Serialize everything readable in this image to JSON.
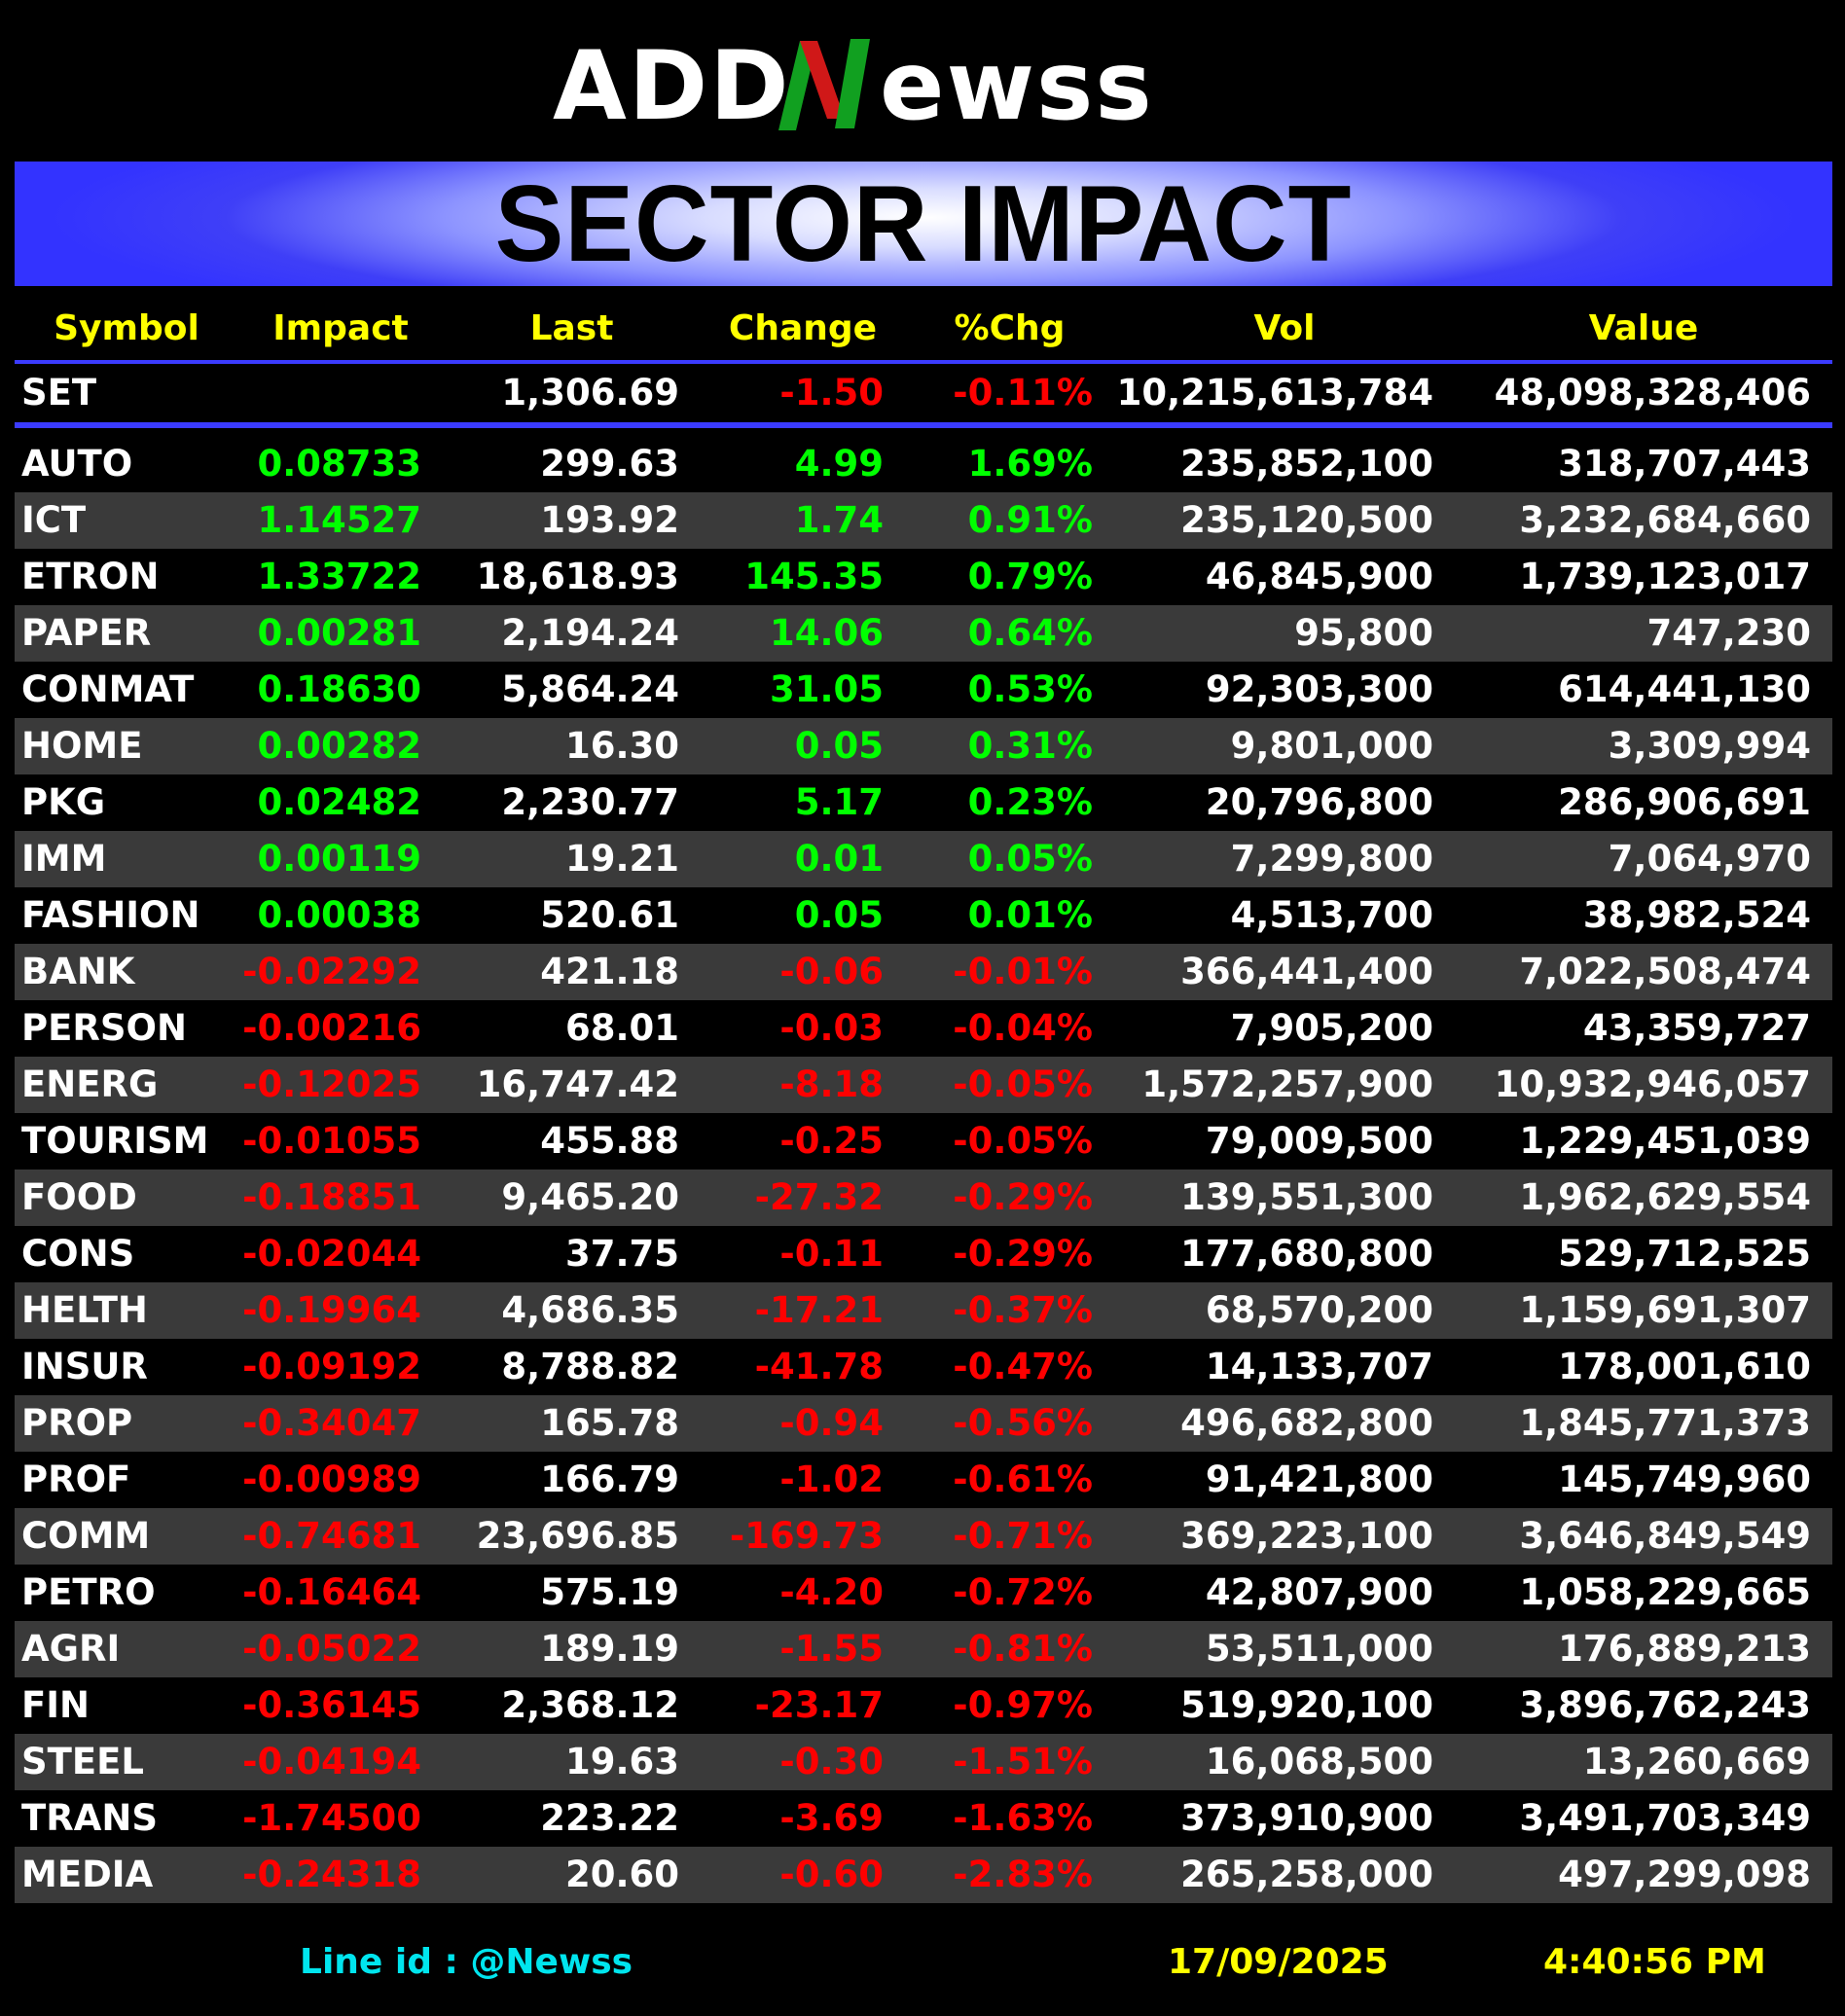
{
  "header": {
    "logo_text": "ADDNewss",
    "title": "SECTOR IMPACT"
  },
  "colors": {
    "positive": "#00ff00",
    "negative": "#ff0000",
    "header_text": "#ffff00",
    "banner": "#3333ff",
    "footer_line": "#00e5ee"
  },
  "table": {
    "columns": [
      "Symbol",
      "Impact",
      "Last",
      "Change",
      "%Chg",
      "Vol",
      "Value"
    ],
    "index": {
      "symbol": "SET",
      "impact": "",
      "last": "1,306.69",
      "change": "-1.50",
      "pct": "-0.11%",
      "vol": "10,215,613,784",
      "value": "48,098,328,406",
      "dir": "neg"
    },
    "rows": [
      {
        "symbol": "AUTO",
        "impact": "0.08733",
        "last": "299.63",
        "change": "4.99",
        "pct": "1.69%",
        "vol": "235,852,100",
        "value": "318,707,443",
        "dir": "pos"
      },
      {
        "symbol": "ICT",
        "impact": "1.14527",
        "last": "193.92",
        "change": "1.74",
        "pct": "0.91%",
        "vol": "235,120,500",
        "value": "3,232,684,660",
        "dir": "pos"
      },
      {
        "symbol": "ETRON",
        "impact": "1.33722",
        "last": "18,618.93",
        "change": "145.35",
        "pct": "0.79%",
        "vol": "46,845,900",
        "value": "1,739,123,017",
        "dir": "pos"
      },
      {
        "symbol": "PAPER",
        "impact": "0.00281",
        "last": "2,194.24",
        "change": "14.06",
        "pct": "0.64%",
        "vol": "95,800",
        "value": "747,230",
        "dir": "pos"
      },
      {
        "symbol": "CONMAT",
        "impact": "0.18630",
        "last": "5,864.24",
        "change": "31.05",
        "pct": "0.53%",
        "vol": "92,303,300",
        "value": "614,441,130",
        "dir": "pos"
      },
      {
        "symbol": "HOME",
        "impact": "0.00282",
        "last": "16.30",
        "change": "0.05",
        "pct": "0.31%",
        "vol": "9,801,000",
        "value": "3,309,994",
        "dir": "pos"
      },
      {
        "symbol": "PKG",
        "impact": "0.02482",
        "last": "2,230.77",
        "change": "5.17",
        "pct": "0.23%",
        "vol": "20,796,800",
        "value": "286,906,691",
        "dir": "pos"
      },
      {
        "symbol": "IMM",
        "impact": "0.00119",
        "last": "19.21",
        "change": "0.01",
        "pct": "0.05%",
        "vol": "7,299,800",
        "value": "7,064,970",
        "dir": "pos"
      },
      {
        "symbol": "FASHION",
        "impact": "0.00038",
        "last": "520.61",
        "change": "0.05",
        "pct": "0.01%",
        "vol": "4,513,700",
        "value": "38,982,524",
        "dir": "pos"
      },
      {
        "symbol": "BANK",
        "impact": "-0.02292",
        "last": "421.18",
        "change": "-0.06",
        "pct": "-0.01%",
        "vol": "366,441,400",
        "value": "7,022,508,474",
        "dir": "neg"
      },
      {
        "symbol": "PERSON",
        "impact": "-0.00216",
        "last": "68.01",
        "change": "-0.03",
        "pct": "-0.04%",
        "vol": "7,905,200",
        "value": "43,359,727",
        "dir": "neg"
      },
      {
        "symbol": "ENERG",
        "impact": "-0.12025",
        "last": "16,747.42",
        "change": "-8.18",
        "pct": "-0.05%",
        "vol": "1,572,257,900",
        "value": "10,932,946,057",
        "dir": "neg"
      },
      {
        "symbol": "TOURISM",
        "impact": "-0.01055",
        "last": "455.88",
        "change": "-0.25",
        "pct": "-0.05%",
        "vol": "79,009,500",
        "value": "1,229,451,039",
        "dir": "neg"
      },
      {
        "symbol": "FOOD",
        "impact": "-0.18851",
        "last": "9,465.20",
        "change": "-27.32",
        "pct": "-0.29%",
        "vol": "139,551,300",
        "value": "1,962,629,554",
        "dir": "neg"
      },
      {
        "symbol": "CONS",
        "impact": "-0.02044",
        "last": "37.75",
        "change": "-0.11",
        "pct": "-0.29%",
        "vol": "177,680,800",
        "value": "529,712,525",
        "dir": "neg"
      },
      {
        "symbol": "HELTH",
        "impact": "-0.19964",
        "last": "4,686.35",
        "change": "-17.21",
        "pct": "-0.37%",
        "vol": "68,570,200",
        "value": "1,159,691,307",
        "dir": "neg"
      },
      {
        "symbol": "INSUR",
        "impact": "-0.09192",
        "last": "8,788.82",
        "change": "-41.78",
        "pct": "-0.47%",
        "vol": "14,133,707",
        "value": "178,001,610",
        "dir": "neg"
      },
      {
        "symbol": "PROP",
        "impact": "-0.34047",
        "last": "165.78",
        "change": "-0.94",
        "pct": "-0.56%",
        "vol": "496,682,800",
        "value": "1,845,771,373",
        "dir": "neg"
      },
      {
        "symbol": "PROF",
        "impact": "-0.00989",
        "last": "166.79",
        "change": "-1.02",
        "pct": "-0.61%",
        "vol": "91,421,800",
        "value": "145,749,960",
        "dir": "neg"
      },
      {
        "symbol": "COMM",
        "impact": "-0.74681",
        "last": "23,696.85",
        "change": "-169.73",
        "pct": "-0.71%",
        "vol": "369,223,100",
        "value": "3,646,849,549",
        "dir": "neg"
      },
      {
        "symbol": "PETRO",
        "impact": "-0.16464",
        "last": "575.19",
        "change": "-4.20",
        "pct": "-0.72%",
        "vol": "42,807,900",
        "value": "1,058,229,665",
        "dir": "neg"
      },
      {
        "symbol": "AGRI",
        "impact": "-0.05022",
        "last": "189.19",
        "change": "-1.55",
        "pct": "-0.81%",
        "vol": "53,511,000",
        "value": "176,889,213",
        "dir": "neg"
      },
      {
        "symbol": "FIN",
        "impact": "-0.36145",
        "last": "2,368.12",
        "change": "-23.17",
        "pct": "-0.97%",
        "vol": "519,920,100",
        "value": "3,896,762,243",
        "dir": "neg"
      },
      {
        "symbol": "STEEL",
        "impact": "-0.04194",
        "last": "19.63",
        "change": "-0.30",
        "pct": "-1.51%",
        "vol": "16,068,500",
        "value": "13,260,669",
        "dir": "neg"
      },
      {
        "symbol": "TRANS",
        "impact": "-1.74500",
        "last": "223.22",
        "change": "-3.69",
        "pct": "-1.63%",
        "vol": "373,910,900",
        "value": "3,491,703,349",
        "dir": "neg"
      },
      {
        "symbol": "MEDIA",
        "impact": "-0.24318",
        "last": "20.60",
        "change": "-0.60",
        "pct": "-2.83%",
        "vol": "265,258,000",
        "value": "497,299,098",
        "dir": "neg"
      }
    ]
  },
  "footer": {
    "line_id": "Line id  : @Newss",
    "date": "17/09/2025",
    "time": "4:40:56 PM"
  }
}
